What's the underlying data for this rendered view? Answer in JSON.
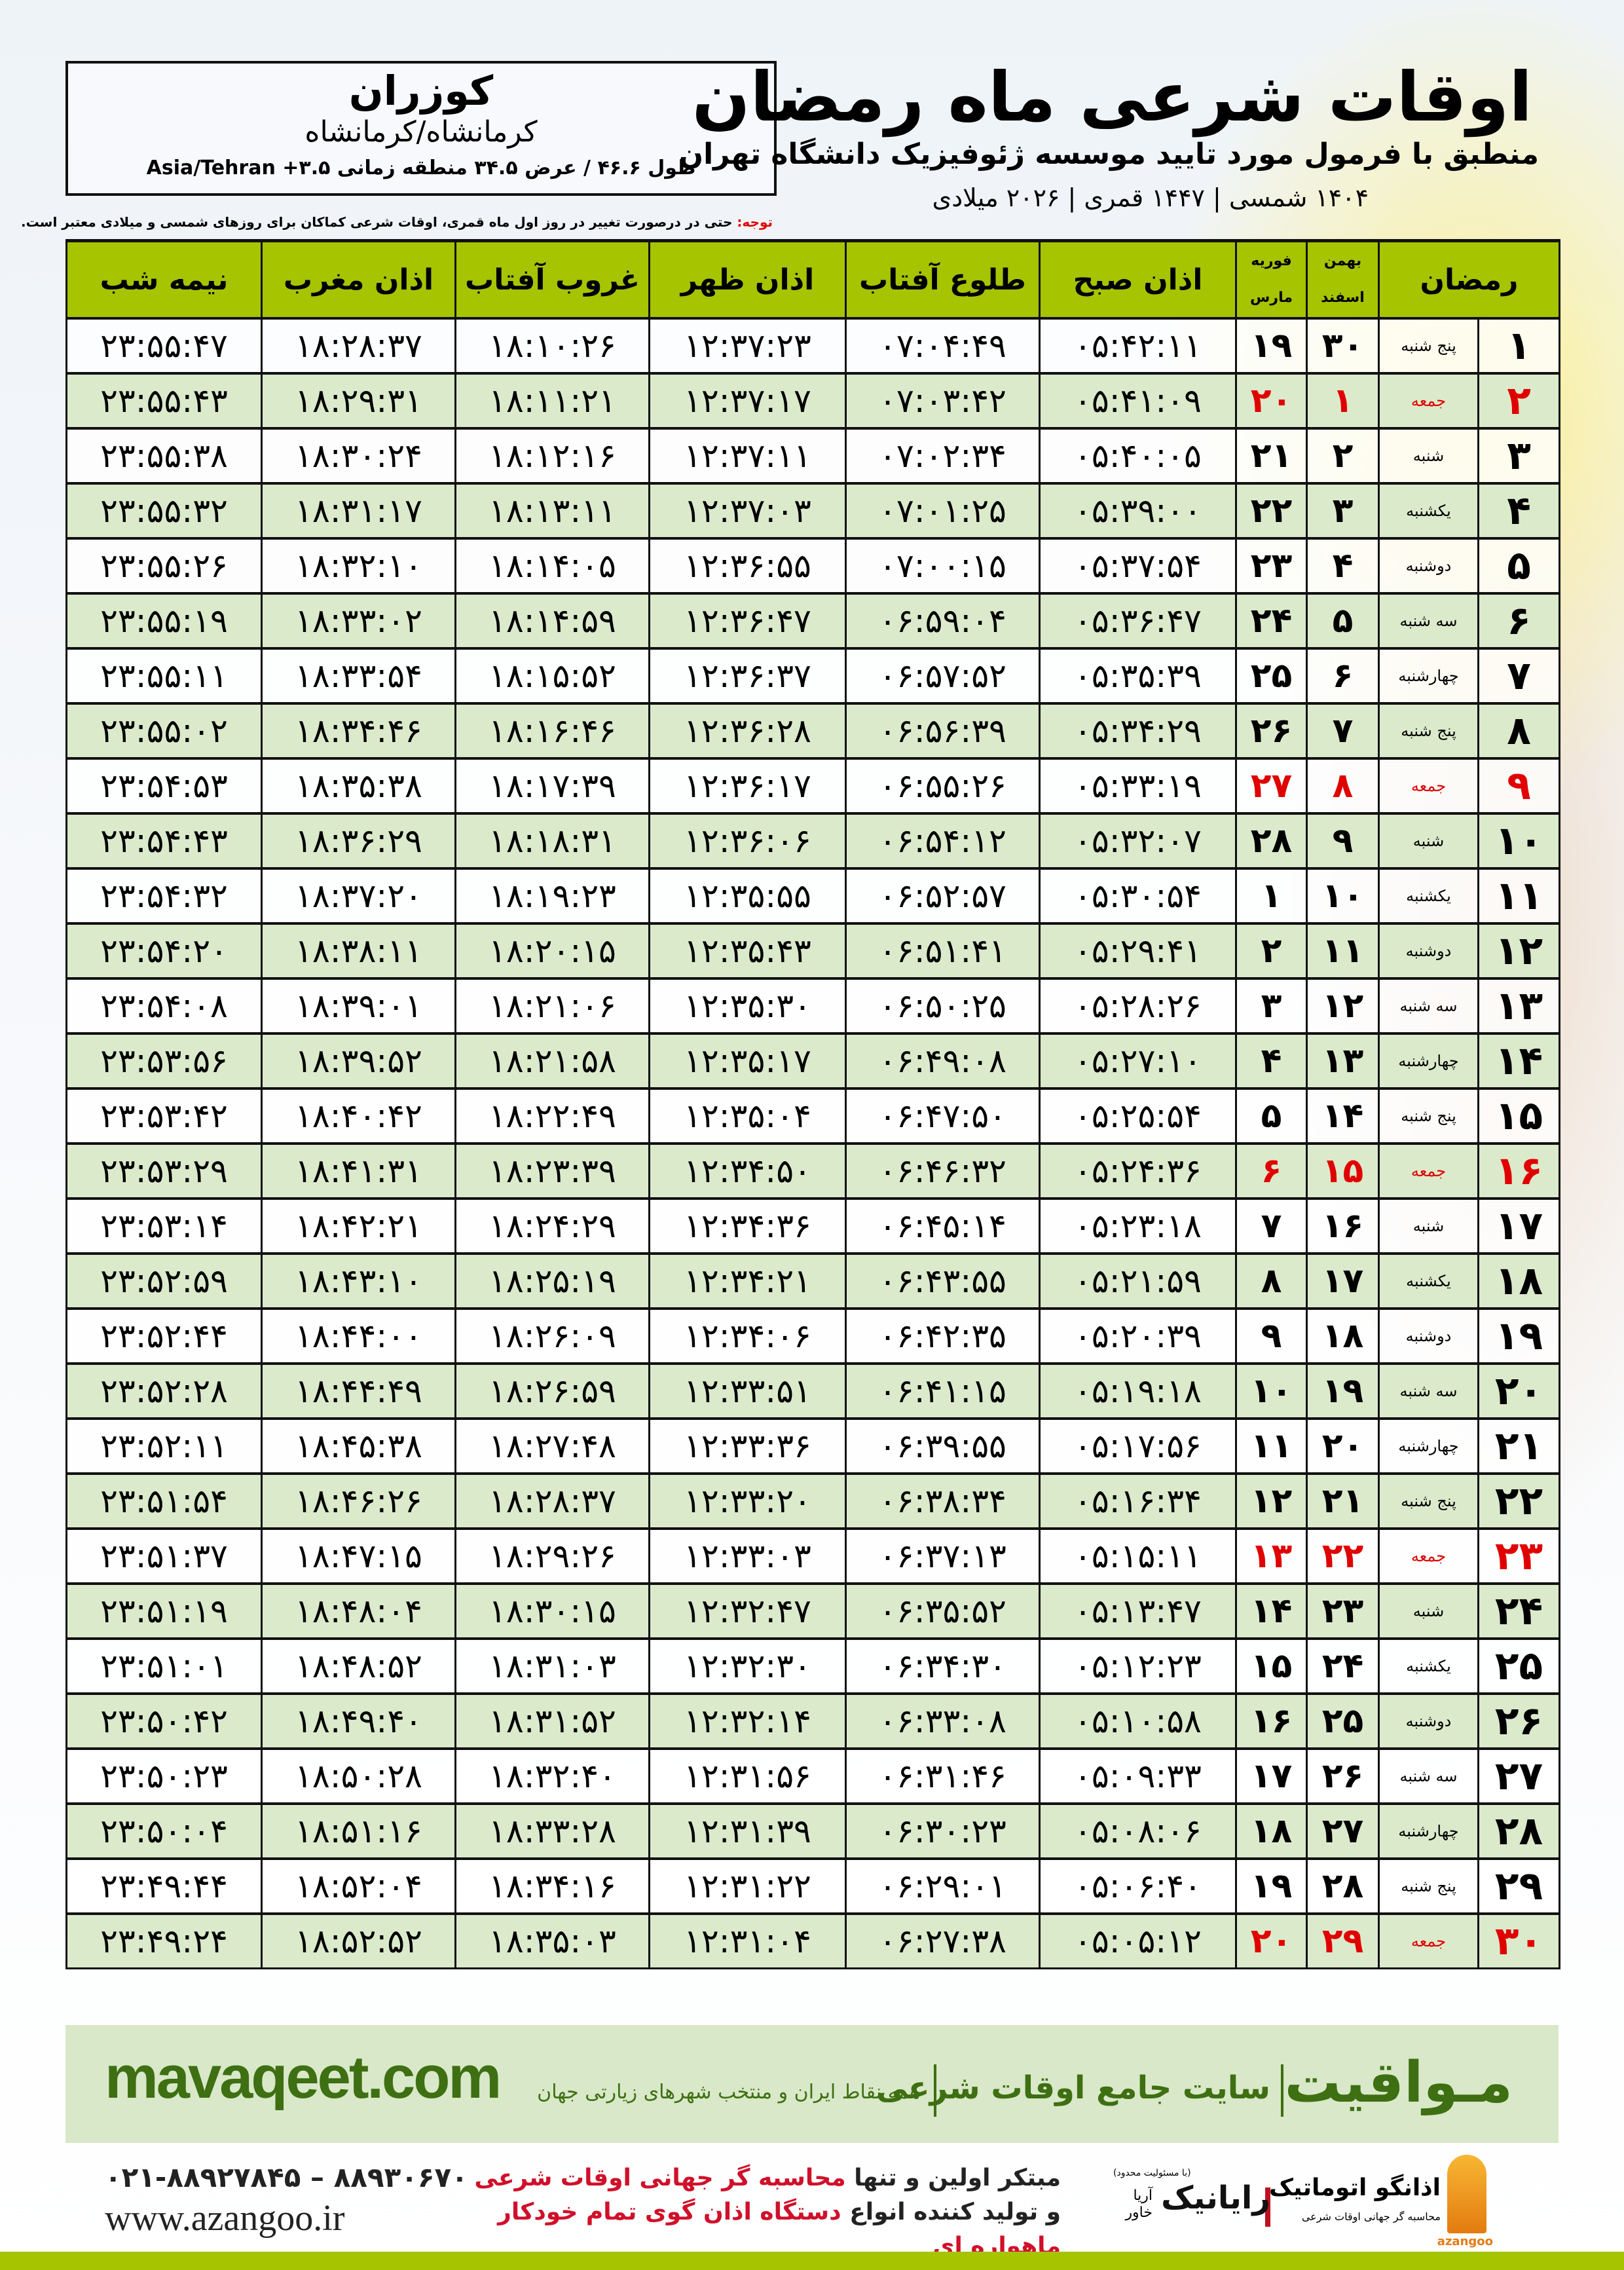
{
  "location": {
    "name": "کوزران",
    "province": "کرمانشاه/کرمانشاه",
    "coords": "طول ۴۶.۶ / عرض ۳۴.۵ منطقه زمانی ۳.۵+ Asia/Tehran"
  },
  "header": {
    "title": "اوقات شرعی ماه رمضان",
    "subtitle": "منطبق با فرمول مورد تایید موسسه ژئوفیزیک دانشگاه تهران",
    "dates": "۱۴۰۴ شمسی | ۱۴۴۷ قمری | ۲۰۲۶ میلادی"
  },
  "note": {
    "label": "توجه:",
    "text": " حتی در درصورت تغییر در روز اول ماه قمری، اوقات شرعی کماکان برای روزهای شمسی و میلادی معتبر است."
  },
  "colors": {
    "header_green": "#a6c400",
    "row_green": "#dbeacb",
    "friday_red": "#e00000",
    "brand_green": "#3e6f12"
  },
  "table": {
    "columns": {
      "ramadan": "رمضان",
      "persian_month_top": "بهمن",
      "persian_month_bottom": "اسفند",
      "gregorian_month_top": "فوریه",
      "gregorian_month_bottom": "مارس",
      "fajr": "اذان صبح",
      "sunrise": "طلوع آفتاب",
      "dhuhr": "اذان ظهر",
      "sunset": "غروب آفتاب",
      "maghrib": "اذان مغرب",
      "midnight": "نیمه شب"
    },
    "rows": [
      [
        "۱",
        "پنج شنبه",
        "۳۰",
        "۱۹",
        "۰۵:۴۲:۱۱",
        "۰۷:۰۴:۴۹",
        "۱۲:۳۷:۲۳",
        "۱۸:۱۰:۲۶",
        "۱۸:۲۸:۳۷",
        "۲۳:۵۵:۴۷"
      ],
      [
        "۲",
        "جمعه",
        "۱",
        "۲۰",
        "۰۵:۴۱:۰۹",
        "۰۷:۰۳:۴۲",
        "۱۲:۳۷:۱۷",
        "۱۸:۱۱:۲۱",
        "۱۸:۲۹:۳۱",
        "۲۳:۵۵:۴۳"
      ],
      [
        "۳",
        "شنبه",
        "۲",
        "۲۱",
        "۰۵:۴۰:۰۵",
        "۰۷:۰۲:۳۴",
        "۱۲:۳۷:۱۱",
        "۱۸:۱۲:۱۶",
        "۱۸:۳۰:۲۴",
        "۲۳:۵۵:۳۸"
      ],
      [
        "۴",
        "یکشنبه",
        "۳",
        "۲۲",
        "۰۵:۳۹:۰۰",
        "۰۷:۰۱:۲۵",
        "۱۲:۳۷:۰۳",
        "۱۸:۱۳:۱۱",
        "۱۸:۳۱:۱۷",
        "۲۳:۵۵:۳۲"
      ],
      [
        "۵",
        "دوشنبه",
        "۴",
        "۲۳",
        "۰۵:۳۷:۵۴",
        "۰۷:۰۰:۱۵",
        "۱۲:۳۶:۵۵",
        "۱۸:۱۴:۰۵",
        "۱۸:۳۲:۱۰",
        "۲۳:۵۵:۲۶"
      ],
      [
        "۶",
        "سه شنبه",
        "۵",
        "۲۴",
        "۰۵:۳۶:۴۷",
        "۰۶:۵۹:۰۴",
        "۱۲:۳۶:۴۷",
        "۱۸:۱۴:۵۹",
        "۱۸:۳۳:۰۲",
        "۲۳:۵۵:۱۹"
      ],
      [
        "۷",
        "چهارشنبه",
        "۶",
        "۲۵",
        "۰۵:۳۵:۳۹",
        "۰۶:۵۷:۵۲",
        "۱۲:۳۶:۳۷",
        "۱۸:۱۵:۵۲",
        "۱۸:۳۳:۵۴",
        "۲۳:۵۵:۱۱"
      ],
      [
        "۸",
        "پنج شنبه",
        "۷",
        "۲۶",
        "۰۵:۳۴:۲۹",
        "۰۶:۵۶:۳۹",
        "۱۲:۳۶:۲۸",
        "۱۸:۱۶:۴۶",
        "۱۸:۳۴:۴۶",
        "۲۳:۵۵:۰۲"
      ],
      [
        "۹",
        "جمعه",
        "۸",
        "۲۷",
        "۰۵:۳۳:۱۹",
        "۰۶:۵۵:۲۶",
        "۱۲:۳۶:۱۷",
        "۱۸:۱۷:۳۹",
        "۱۸:۳۵:۳۸",
        "۲۳:۵۴:۵۳"
      ],
      [
        "۱۰",
        "شنبه",
        "۹",
        "۲۸",
        "۰۵:۳۲:۰۷",
        "۰۶:۵۴:۱۲",
        "۱۲:۳۶:۰۶",
        "۱۸:۱۸:۳۱",
        "۱۸:۳۶:۲۹",
        "۲۳:۵۴:۴۳"
      ],
      [
        "۱۱",
        "یکشنبه",
        "۱۰",
        "۱",
        "۰۵:۳۰:۵۴",
        "۰۶:۵۲:۵۷",
        "۱۲:۳۵:۵۵",
        "۱۸:۱۹:۲۳",
        "۱۸:۳۷:۲۰",
        "۲۳:۵۴:۳۲"
      ],
      [
        "۱۲",
        "دوشنبه",
        "۱۱",
        "۲",
        "۰۵:۲۹:۴۱",
        "۰۶:۵۱:۴۱",
        "۱۲:۳۵:۴۳",
        "۱۸:۲۰:۱۵",
        "۱۸:۳۸:۱۱",
        "۲۳:۵۴:۲۰"
      ],
      [
        "۱۳",
        "سه شنبه",
        "۱۲",
        "۳",
        "۰۵:۲۸:۲۶",
        "۰۶:۵۰:۲۵",
        "۱۲:۳۵:۳۰",
        "۱۸:۲۱:۰۶",
        "۱۸:۳۹:۰۱",
        "۲۳:۵۴:۰۸"
      ],
      [
        "۱۴",
        "چهارشنبه",
        "۱۳",
        "۴",
        "۰۵:۲۷:۱۰",
        "۰۶:۴۹:۰۸",
        "۱۲:۳۵:۱۷",
        "۱۸:۲۱:۵۸",
        "۱۸:۳۹:۵۲",
        "۲۳:۵۳:۵۶"
      ],
      [
        "۱۵",
        "پنج شنبه",
        "۱۴",
        "۵",
        "۰۵:۲۵:۵۴",
        "۰۶:۴۷:۵۰",
        "۱۲:۳۵:۰۴",
        "۱۸:۲۲:۴۹",
        "۱۸:۴۰:۴۲",
        "۲۳:۵۳:۴۲"
      ],
      [
        "۱۶",
        "جمعه",
        "۱۵",
        "۶",
        "۰۵:۲۴:۳۶",
        "۰۶:۴۶:۳۲",
        "۱۲:۳۴:۵۰",
        "۱۸:۲۳:۳۹",
        "۱۸:۴۱:۳۱",
        "۲۳:۵۳:۲۹"
      ],
      [
        "۱۷",
        "شنبه",
        "۱۶",
        "۷",
        "۰۵:۲۳:۱۸",
        "۰۶:۴۵:۱۴",
        "۱۲:۳۴:۳۶",
        "۱۸:۲۴:۲۹",
        "۱۸:۴۲:۲۱",
        "۲۳:۵۳:۱۴"
      ],
      [
        "۱۸",
        "یکشنبه",
        "۱۷",
        "۸",
        "۰۵:۲۱:۵۹",
        "۰۶:۴۳:۵۵",
        "۱۲:۳۴:۲۱",
        "۱۸:۲۵:۱۹",
        "۱۸:۴۳:۱۰",
        "۲۳:۵۲:۵۹"
      ],
      [
        "۱۹",
        "دوشنبه",
        "۱۸",
        "۹",
        "۰۵:۲۰:۳۹",
        "۰۶:۴۲:۳۵",
        "۱۲:۳۴:۰۶",
        "۱۸:۲۶:۰۹",
        "۱۸:۴۴:۰۰",
        "۲۳:۵۲:۴۴"
      ],
      [
        "۲۰",
        "سه شنبه",
        "۱۹",
        "۱۰",
        "۰۵:۱۹:۱۸",
        "۰۶:۴۱:۱۵",
        "۱۲:۳۳:۵۱",
        "۱۸:۲۶:۵۹",
        "۱۸:۴۴:۴۹",
        "۲۳:۵۲:۲۸"
      ],
      [
        "۲۱",
        "چهارشنبه",
        "۲۰",
        "۱۱",
        "۰۵:۱۷:۵۶",
        "۰۶:۳۹:۵۵",
        "۱۲:۳۳:۳۶",
        "۱۸:۲۷:۴۸",
        "۱۸:۴۵:۳۸",
        "۲۳:۵۲:۱۱"
      ],
      [
        "۲۲",
        "پنج شنبه",
        "۲۱",
        "۱۲",
        "۰۵:۱۶:۳۴",
        "۰۶:۳۸:۳۴",
        "۱۲:۳۳:۲۰",
        "۱۸:۲۸:۳۷",
        "۱۸:۴۶:۲۶",
        "۲۳:۵۱:۵۴"
      ],
      [
        "۲۳",
        "جمعه",
        "۲۲",
        "۱۳",
        "۰۵:۱۵:۱۱",
        "۰۶:۳۷:۱۳",
        "۱۲:۳۳:۰۳",
        "۱۸:۲۹:۲۶",
        "۱۸:۴۷:۱۵",
        "۲۳:۵۱:۳۷"
      ],
      [
        "۲۴",
        "شنبه",
        "۲۳",
        "۱۴",
        "۰۵:۱۳:۴۷",
        "۰۶:۳۵:۵۲",
        "۱۲:۳۲:۴۷",
        "۱۸:۳۰:۱۵",
        "۱۸:۴۸:۰۴",
        "۲۳:۵۱:۱۹"
      ],
      [
        "۲۵",
        "یکشنبه",
        "۲۴",
        "۱۵",
        "۰۵:۱۲:۲۳",
        "۰۶:۳۴:۳۰",
        "۱۲:۳۲:۳۰",
        "۱۸:۳۱:۰۳",
        "۱۸:۴۸:۵۲",
        "۲۳:۵۱:۰۱"
      ],
      [
        "۲۶",
        "دوشنبه",
        "۲۵",
        "۱۶",
        "۰۵:۱۰:۵۸",
        "۰۶:۳۳:۰۸",
        "۱۲:۳۲:۱۴",
        "۱۸:۳۱:۵۲",
        "۱۸:۴۹:۴۰",
        "۲۳:۵۰:۴۲"
      ],
      [
        "۲۷",
        "سه شنبه",
        "۲۶",
        "۱۷",
        "۰۵:۰۹:۳۳",
        "۰۶:۳۱:۴۶",
        "۱۲:۳۱:۵۶",
        "۱۸:۳۲:۴۰",
        "۱۸:۵۰:۲۸",
        "۲۳:۵۰:۲۳"
      ],
      [
        "۲۸",
        "چهارشنبه",
        "۲۷",
        "۱۸",
        "۰۵:۰۸:۰۶",
        "۰۶:۳۰:۲۳",
        "۱۲:۳۱:۳۹",
        "۱۸:۳۳:۲۸",
        "۱۸:۵۱:۱۶",
        "۲۳:۵۰:۰۴"
      ],
      [
        "۲۹",
        "پنج شنبه",
        "۲۸",
        "۱۹",
        "۰۵:۰۶:۴۰",
        "۰۶:۲۹:۰۱",
        "۱۲:۳۱:۲۲",
        "۱۸:۳۴:۱۶",
        "۱۸:۵۲:۰۴",
        "۲۳:۴۹:۴۴"
      ],
      [
        "۳۰",
        "جمعه",
        "۲۹",
        "۲۰",
        "۰۵:۰۵:۱۲",
        "۰۶:۲۷:۳۸",
        "۱۲:۳۱:۰۴",
        "۱۸:۳۵:۰۳",
        "۱۸:۵۲:۵۲",
        "۲۳:۴۹:۲۴"
      ]
    ]
  },
  "banner": {
    "brand": "مـواقیت",
    "tagline": "سایت جامع اوقات شرعی",
    "sub": "همه نقاط ایران و منتخب شهرهای زیارتی جهان",
    "url": "mavaqeet.com"
  },
  "footer": {
    "phone": "۰۲۱-۸۸۹۲۷۸۴۵ – ۸۸۹۳۰۶۷۰",
    "website": "www.azangoo.ir",
    "line1_a": "مبتکر اولین و تنها ",
    "line1_b": "محاسبه گر جهانی اوقات شرعی",
    "line2_a": "و تولید کننده انواع ",
    "line2_b": "دستگاه اذان گوی تمام خودکار ماهواره ای",
    "rayanik_name": "رایانیک",
    "rayanik_small": "(با مسئولیت محدود)",
    "rayanik_sub": "آریا خاور",
    "azangoo_name": "اذانگو اتوماتیک",
    "azangoo_sub": "محاسبه گر جهانی اوقات شرعی",
    "azangoo_latin": "azangoo"
  }
}
